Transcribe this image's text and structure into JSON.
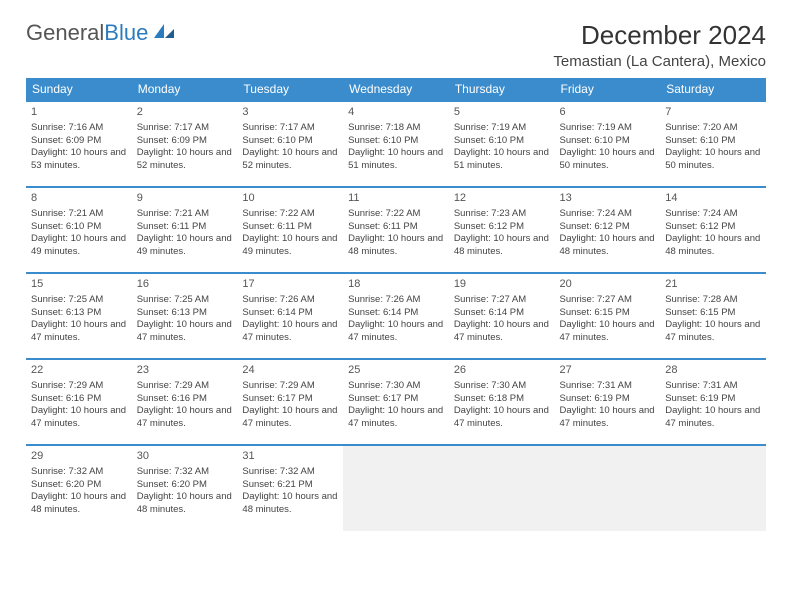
{
  "brand": {
    "part1": "General",
    "part2": "Blue"
  },
  "title": "December 2024",
  "location": "Temastian (La Cantera), Mexico",
  "colors": {
    "header_bg": "#3b8ccc",
    "header_text": "#ffffff",
    "row_border": "#3b8ccc",
    "empty_bg": "#f1f1f1",
    "text": "#444444",
    "brand_gray": "#555555",
    "brand_blue": "#2b7bbf"
  },
  "weekdays": [
    "Sunday",
    "Monday",
    "Tuesday",
    "Wednesday",
    "Thursday",
    "Friday",
    "Saturday"
  ],
  "days": [
    {
      "n": 1,
      "sr": "7:16 AM",
      "ss": "6:09 PM",
      "dl": "10 hours and 53 minutes."
    },
    {
      "n": 2,
      "sr": "7:17 AM",
      "ss": "6:09 PM",
      "dl": "10 hours and 52 minutes."
    },
    {
      "n": 3,
      "sr": "7:17 AM",
      "ss": "6:10 PM",
      "dl": "10 hours and 52 minutes."
    },
    {
      "n": 4,
      "sr": "7:18 AM",
      "ss": "6:10 PM",
      "dl": "10 hours and 51 minutes."
    },
    {
      "n": 5,
      "sr": "7:19 AM",
      "ss": "6:10 PM",
      "dl": "10 hours and 51 minutes."
    },
    {
      "n": 6,
      "sr": "7:19 AM",
      "ss": "6:10 PM",
      "dl": "10 hours and 50 minutes."
    },
    {
      "n": 7,
      "sr": "7:20 AM",
      "ss": "6:10 PM",
      "dl": "10 hours and 50 minutes."
    },
    {
      "n": 8,
      "sr": "7:21 AM",
      "ss": "6:10 PM",
      "dl": "10 hours and 49 minutes."
    },
    {
      "n": 9,
      "sr": "7:21 AM",
      "ss": "6:11 PM",
      "dl": "10 hours and 49 minutes."
    },
    {
      "n": 10,
      "sr": "7:22 AM",
      "ss": "6:11 PM",
      "dl": "10 hours and 49 minutes."
    },
    {
      "n": 11,
      "sr": "7:22 AM",
      "ss": "6:11 PM",
      "dl": "10 hours and 48 minutes."
    },
    {
      "n": 12,
      "sr": "7:23 AM",
      "ss": "6:12 PM",
      "dl": "10 hours and 48 minutes."
    },
    {
      "n": 13,
      "sr": "7:24 AM",
      "ss": "6:12 PM",
      "dl": "10 hours and 48 minutes."
    },
    {
      "n": 14,
      "sr": "7:24 AM",
      "ss": "6:12 PM",
      "dl": "10 hours and 48 minutes."
    },
    {
      "n": 15,
      "sr": "7:25 AM",
      "ss": "6:13 PM",
      "dl": "10 hours and 47 minutes."
    },
    {
      "n": 16,
      "sr": "7:25 AM",
      "ss": "6:13 PM",
      "dl": "10 hours and 47 minutes."
    },
    {
      "n": 17,
      "sr": "7:26 AM",
      "ss": "6:14 PM",
      "dl": "10 hours and 47 minutes."
    },
    {
      "n": 18,
      "sr": "7:26 AM",
      "ss": "6:14 PM",
      "dl": "10 hours and 47 minutes."
    },
    {
      "n": 19,
      "sr": "7:27 AM",
      "ss": "6:14 PM",
      "dl": "10 hours and 47 minutes."
    },
    {
      "n": 20,
      "sr": "7:27 AM",
      "ss": "6:15 PM",
      "dl": "10 hours and 47 minutes."
    },
    {
      "n": 21,
      "sr": "7:28 AM",
      "ss": "6:15 PM",
      "dl": "10 hours and 47 minutes."
    },
    {
      "n": 22,
      "sr": "7:29 AM",
      "ss": "6:16 PM",
      "dl": "10 hours and 47 minutes."
    },
    {
      "n": 23,
      "sr": "7:29 AM",
      "ss": "6:16 PM",
      "dl": "10 hours and 47 minutes."
    },
    {
      "n": 24,
      "sr": "7:29 AM",
      "ss": "6:17 PM",
      "dl": "10 hours and 47 minutes."
    },
    {
      "n": 25,
      "sr": "7:30 AM",
      "ss": "6:17 PM",
      "dl": "10 hours and 47 minutes."
    },
    {
      "n": 26,
      "sr": "7:30 AM",
      "ss": "6:18 PM",
      "dl": "10 hours and 47 minutes."
    },
    {
      "n": 27,
      "sr": "7:31 AM",
      "ss": "6:19 PM",
      "dl": "10 hours and 47 minutes."
    },
    {
      "n": 28,
      "sr": "7:31 AM",
      "ss": "6:19 PM",
      "dl": "10 hours and 47 minutes."
    },
    {
      "n": 29,
      "sr": "7:32 AM",
      "ss": "6:20 PM",
      "dl": "10 hours and 48 minutes."
    },
    {
      "n": 30,
      "sr": "7:32 AM",
      "ss": "6:20 PM",
      "dl": "10 hours and 48 minutes."
    },
    {
      "n": 31,
      "sr": "7:32 AM",
      "ss": "6:21 PM",
      "dl": "10 hours and 48 minutes."
    }
  ],
  "labels": {
    "sunrise": "Sunrise:",
    "sunset": "Sunset:",
    "daylight": "Daylight:"
  },
  "layout": {
    "start_weekday": 0,
    "total_cells": 35
  }
}
